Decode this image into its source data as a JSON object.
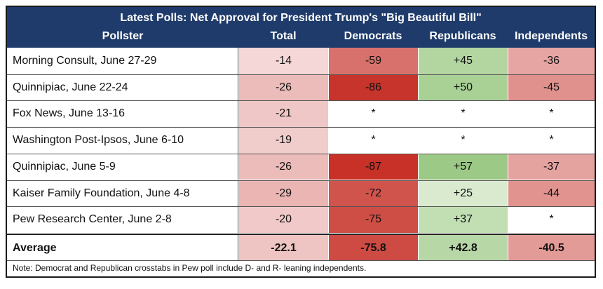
{
  "chart_data": {
    "type": "table",
    "title": "Latest Polls: Net Approval for President Trump's \"Big Beautiful Bill\"",
    "columns": [
      "Pollster",
      "Total",
      "Democrats",
      "Republicans",
      "Independents"
    ],
    "rows": [
      {
        "pollster": "Morning Consult, June 27-29",
        "total": "-14",
        "dem": "-59",
        "rep": "+45",
        "ind": "-36"
      },
      {
        "pollster": "Quinnipiac, June 22-24",
        "total": "-26",
        "dem": "-86",
        "rep": "+50",
        "ind": "-45"
      },
      {
        "pollster": "Fox News, June 13-16",
        "total": "-21",
        "dem": "*",
        "rep": "*",
        "ind": "*"
      },
      {
        "pollster": "Washington Post-Ipsos, June 6-10",
        "total": "-19",
        "dem": "*",
        "rep": "*",
        "ind": "*"
      },
      {
        "pollster": "Quinnipiac, June 5-9",
        "total": "-26",
        "dem": "-87",
        "rep": "+57",
        "ind": "-37"
      },
      {
        "pollster": "Kaiser Family Foundation, June 4-8",
        "total": "-29",
        "dem": "-72",
        "rep": "+25",
        "ind": "-44"
      },
      {
        "pollster": "Pew Research Center, June 2-8",
        "total": "-20",
        "dem": "-75",
        "rep": "+37",
        "ind": "*"
      }
    ],
    "average": {
      "label": "Average",
      "total": "-22.1",
      "dem": "-75.8",
      "rep": "+42.8",
      "ind": "-40.5"
    },
    "note": "Note: Democrat and Republican crosstabs in Pew poll include D- and R- leaning independents."
  },
  "colors": {
    "header_bg": "#1f3b6b",
    "neg_light": "#f3dada",
    "neg_mid": "#e8b0b0",
    "neg_dark": "#c83a31",
    "pos_light": "#dcebd3",
    "pos_dark": "#8fc47a"
  }
}
